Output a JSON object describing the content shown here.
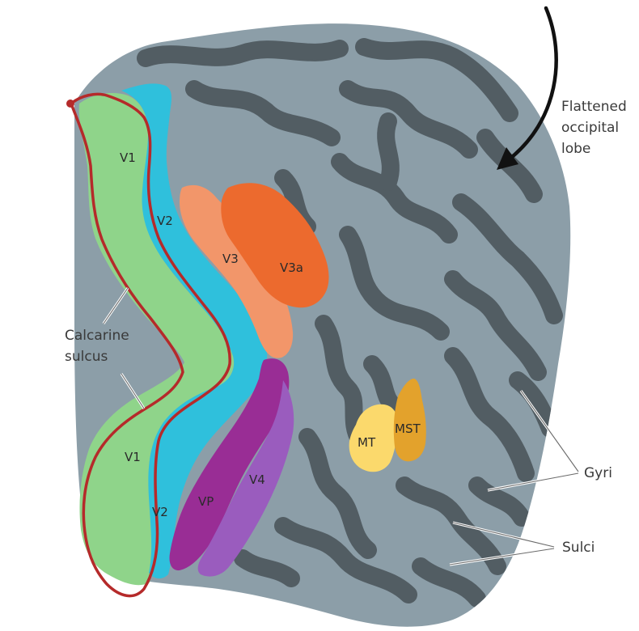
{
  "figure": {
    "areas": [
      {
        "name": "V1",
        "label": "V1",
        "color": "#8fd48a"
      },
      {
        "name": "V1-lower",
        "label": "V1",
        "color": "#8fd48a"
      },
      {
        "name": "V2",
        "label": "V2",
        "color": "#2fc0dc"
      },
      {
        "name": "V2-lower",
        "label": "V2",
        "color": "#2fc0dc"
      },
      {
        "name": "V3",
        "label": "V3",
        "color": "#f2966a"
      },
      {
        "name": "V3a",
        "label": "V3a",
        "color": "#ec6a2e"
      },
      {
        "name": "VP",
        "label": "VP",
        "color": "#992d95"
      },
      {
        "name": "V4",
        "label": "V4",
        "color": "#9a5cbe"
      },
      {
        "name": "MT",
        "label": "MT",
        "color": "#fbd96c"
      },
      {
        "name": "MST",
        "label": "MST",
        "color": "#e3a22c"
      }
    ],
    "callouts": {
      "flattened": [
        "Flattened",
        "occipital",
        "lobe"
      ],
      "calcarine": [
        "Calcarine",
        "sulcus"
      ],
      "gyri": "Gyri",
      "sulci": "Sulci"
    },
    "colors": {
      "gyri": "#8c9ea8",
      "sulci": "#525d63",
      "calcarine_outline": "#b52a2a",
      "arrow": "#111111"
    }
  }
}
